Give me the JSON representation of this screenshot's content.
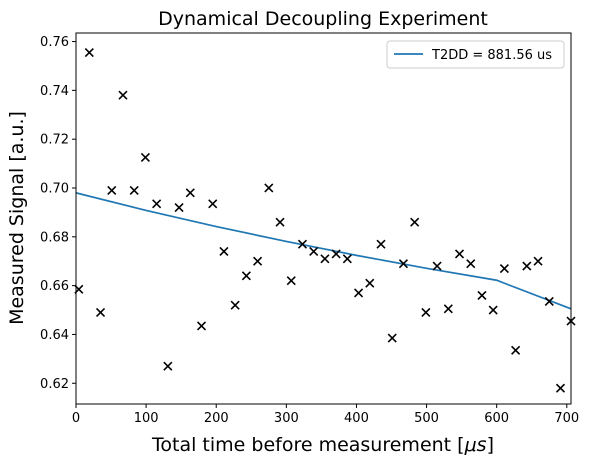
{
  "chart_data": {
    "type": "scatter",
    "title": "Dynamical Decoupling Experiment",
    "xlabel_prefix": "Total time before measurement [",
    "xlabel_unit": "μs",
    "xlabel_suffix": "]",
    "ylabel": "Measured Signal [a.u.]",
    "xlim": [
      0,
      706
    ],
    "ylim": [
      0.6115,
      0.7635
    ],
    "xticks": [
      0,
      100,
      200,
      300,
      400,
      500,
      600,
      700
    ],
    "yticks": [
      0.62,
      0.64,
      0.66,
      0.68,
      0.7,
      0.72,
      0.74,
      0.76
    ],
    "grid": false,
    "legend_position": "top-right",
    "colors": {
      "fit": "#1f77b4",
      "points": "#000000"
    },
    "series": [
      {
        "kind": "points",
        "marker": "x",
        "x": [
          4,
          19,
          35,
          51,
          67,
          83,
          99,
          115,
          131,
          147,
          163,
          179,
          195,
          211,
          227,
          243,
          259,
          275,
          291,
          307,
          323,
          339,
          355,
          371,
          387,
          403,
          419,
          435,
          451,
          467,
          483,
          499,
          515,
          531,
          547,
          563,
          579,
          595,
          611,
          627,
          643,
          659,
          675,
          691,
          706
        ],
        "y": [
          0.6585,
          0.7555,
          0.649,
          0.699,
          0.738,
          0.699,
          0.7125,
          0.6935,
          0.627,
          0.692,
          0.698,
          0.6435,
          0.6935,
          0.674,
          0.652,
          0.664,
          0.67,
          0.7,
          0.686,
          0.662,
          0.677,
          0.674,
          0.671,
          0.673,
          0.671,
          0.657,
          0.661,
          0.677,
          0.6385,
          0.669,
          0.686,
          0.649,
          0.668,
          0.6505,
          0.673,
          0.669,
          0.656,
          0.65,
          0.667,
          0.6335,
          0.668,
          0.67,
          0.6535,
          0.618,
          0.6455
        ]
      },
      {
        "kind": "fit",
        "name": "T2DD = 881.56 us",
        "x": [
          0,
          100,
          200,
          300,
          400,
          500,
          600,
          706
        ],
        "y": [
          0.698,
          0.6908,
          0.6842,
          0.6781,
          0.6724,
          0.6671,
          0.6622,
          0.6505
        ]
      }
    ]
  }
}
